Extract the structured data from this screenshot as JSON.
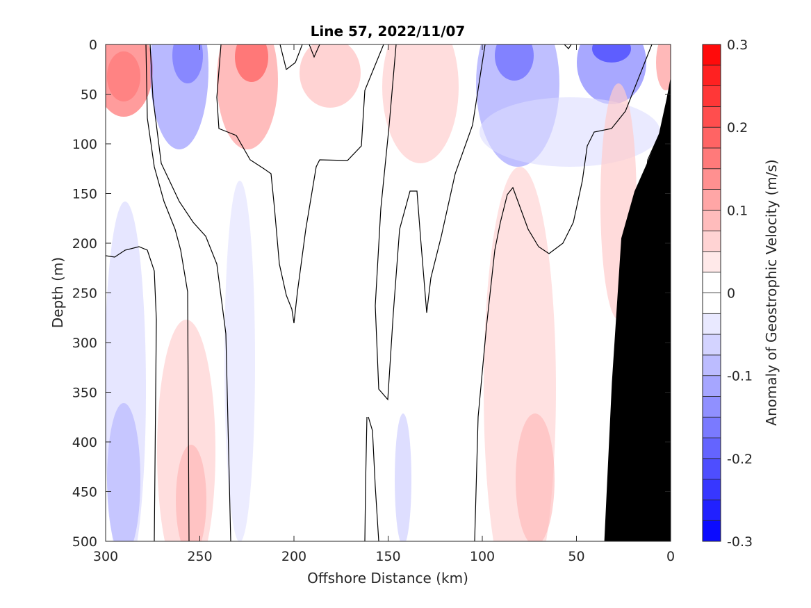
{
  "chart_data": {
    "type": "contour",
    "title": "Line 57, 2022/11/07",
    "xlabel": "Offshore Distance (km)",
    "ylabel": "Depth (m)",
    "colorbar_label": "Anomaly of Geostrophic Velocity (m/s)",
    "xlim": [
      300,
      0
    ],
    "ylim": [
      0,
      500
    ],
    "x_reversed": true,
    "y_reversed": true,
    "x_ticks": [
      300,
      250,
      200,
      150,
      100,
      50,
      0
    ],
    "x_tick_labels": [
      "300",
      "250",
      "200",
      "150",
      "100",
      "50",
      "0"
    ],
    "y_ticks": [
      0,
      50,
      100,
      150,
      200,
      250,
      300,
      350,
      400,
      450,
      500
    ],
    "y_tick_labels": [
      "0",
      "50",
      "100",
      "150",
      "200",
      "250",
      "300",
      "350",
      "400",
      "450",
      "500"
    ],
    "colorbar": {
      "range": [
        -0.3,
        0.3
      ],
      "step": 0.025,
      "ticks": [
        0.3,
        0.2,
        0.1,
        0,
        -0.1,
        -0.2,
        -0.3
      ],
      "tick_labels": [
        "0.3",
        "0.2",
        "0.1",
        "0",
        "-0.1",
        "-0.2",
        "-0.3"
      ],
      "positive_color": "#ff0000",
      "negative_color": "#0000ff",
      "zero_color": "#ffffff"
    },
    "zero_contour_color": "#000000",
    "bathymetry_color": "#000000",
    "bathymetry": [
      [
        35,
        500
      ],
      [
        31,
        340
      ],
      [
        26,
        195
      ],
      [
        19,
        148
      ],
      [
        12,
        118
      ],
      [
        6,
        90
      ],
      [
        2,
        55
      ],
      [
        0,
        35
      ],
      [
        0,
        500
      ]
    ],
    "features": [
      {
        "x": 290,
        "depth": 30,
        "value": 0.08
      },
      {
        "x": 257,
        "depth": 10,
        "value": -0.11
      },
      {
        "x": 222,
        "depth": 10,
        "value": 0.14
      },
      {
        "x": 175,
        "depth": 20,
        "value": 0.05
      },
      {
        "x": 82,
        "depth": 15,
        "value": -0.14
      },
      {
        "x": 30,
        "depth": 5,
        "value": -0.18
      },
      {
        "x": 3,
        "depth": 10,
        "value": 0.07
      },
      {
        "x": 255,
        "depth": 460,
        "value": 0.06
      },
      {
        "x": 78,
        "depth": 430,
        "value": 0.05
      },
      {
        "x": 295,
        "depth": 430,
        "value": -0.04
      }
    ]
  }
}
